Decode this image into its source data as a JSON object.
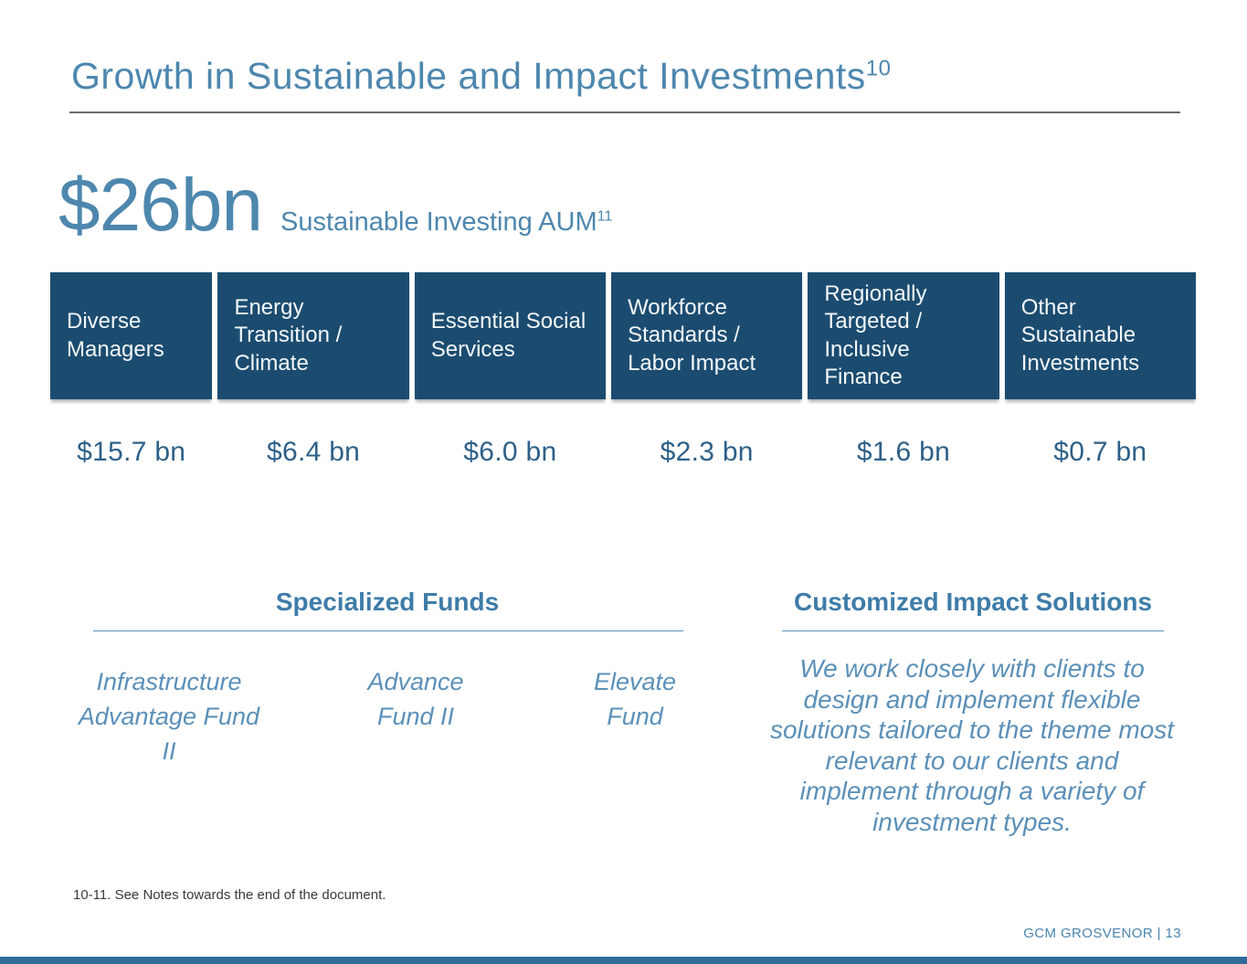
{
  "slide": {
    "title": "Growth in Sustainable and Impact Investments",
    "title_superscript": "10",
    "headline": {
      "value": "$26bn",
      "label": "Sustainable Investing AUM",
      "superscript": "11"
    },
    "categories": [
      {
        "label": "Diverse Managers",
        "value": "$15.7 bn"
      },
      {
        "label": "Energy Transition / Climate",
        "value": "$6.4 bn"
      },
      {
        "label": "Essential Social Services",
        "value": "$6.0 bn"
      },
      {
        "label": "Workforce Standards / Labor Impact",
        "value": "$2.3 bn"
      },
      {
        "label": "Regionally Targeted / Inclusive Finance",
        "value": "$1.6 bn"
      },
      {
        "label": "Other Sustainable Investments",
        "value": "$0.7 bn"
      }
    ],
    "specialized_funds": {
      "heading": "Specialized Funds",
      "funds": [
        "Infrastructure Advantage Fund II",
        "Advance Fund II",
        "Elevate Fund"
      ]
    },
    "customized_impact": {
      "heading": "Customized Impact Solutions",
      "body": "We work closely with clients to design and implement flexible solutions tailored to the theme most relevant to our clients and implement through a variety of investment types."
    },
    "footnote": "10-11. See Notes towards the end of the document.",
    "footer_brand": "GCM GROSVENOR | 13",
    "colors": {
      "accent_blue": "#4d87ae",
      "box_blue": "#1b4c70",
      "value_blue": "#2d6089",
      "section_blue": "#3e7ca8",
      "italic_blue": "#5b90b8",
      "bottom_bar_blue": "#2f6c9c"
    }
  }
}
